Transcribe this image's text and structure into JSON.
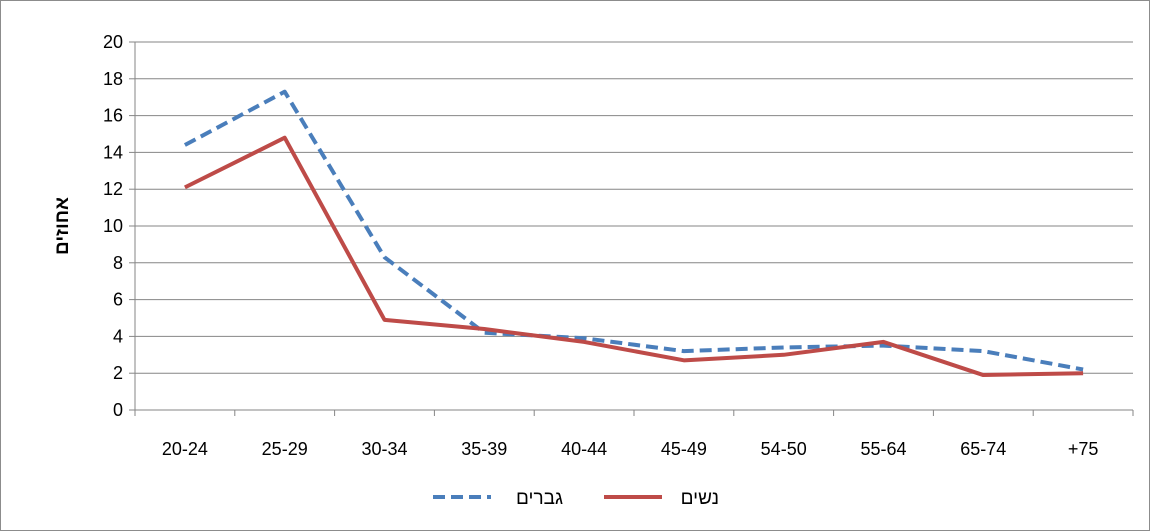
{
  "chart_data": {
    "type": "line",
    "title": "",
    "xlabel": "",
    "ylabel": "אחוזים",
    "ylim": [
      0,
      20
    ],
    "yticks": [
      "0",
      "2",
      "4",
      "6",
      "8",
      "10",
      "12",
      "14",
      "16",
      "18",
      "20"
    ],
    "categories": [
      "20-24",
      "25-29",
      "30-34",
      "35-39",
      "40-44",
      "45-49",
      "54-50",
      "55-64",
      "65-74",
      "+75"
    ],
    "series": [
      {
        "name": "גברים",
        "color": "#4a7ebb",
        "dash": "dashed",
        "values": [
          14.4,
          17.3,
          8.3,
          4.2,
          3.9,
          3.2,
          3.4,
          3.5,
          3.2,
          2.2
        ]
      },
      {
        "name": "נשים",
        "color": "#be4b48",
        "dash": "solid",
        "values": [
          12.1,
          14.8,
          4.9,
          4.4,
          3.7,
          2.7,
          3.0,
          3.7,
          1.9,
          2.0
        ]
      }
    ],
    "grid": true,
    "legend": "bottom"
  }
}
